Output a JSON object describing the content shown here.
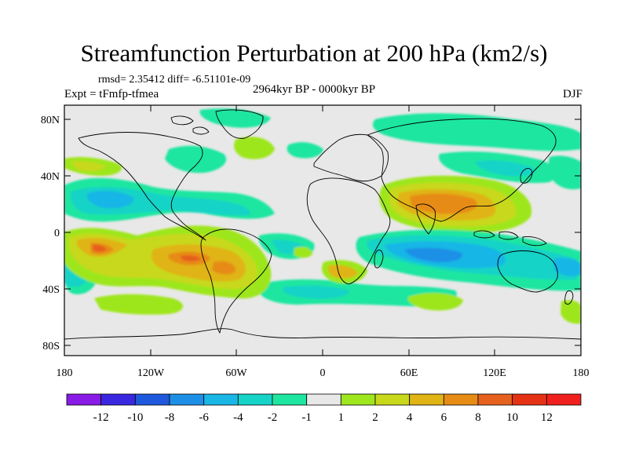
{
  "title": "Streamfunction Perturbation at 200 hPa (km2/s)",
  "stats": "rmsd= 2.35412 diff= -6.51101e-09",
  "experiment": "Expt = tFmfp-tfmea",
  "period": "2964kyr BP - 0000kyr BP",
  "season": "DJF",
  "lat_labels": [
    "80N",
    "40N",
    "0",
    "40S",
    "80S"
  ],
  "lon_labels": [
    "180",
    "120W",
    "60W",
    "0",
    "60E",
    "120E",
    "180"
  ],
  "colorbar": {
    "labels": [
      "-12",
      "-10",
      "-8",
      "-6",
      "-4",
      "-2",
      "-1",
      "1",
      "2",
      "4",
      "6",
      "8",
      "10",
      "12"
    ],
    "colors": [
      "#8a1be6",
      "#3a27e0",
      "#1e58dc",
      "#1e8fe6",
      "#19b6e6",
      "#16d3c7",
      "#1ee6a0",
      "#e8e8e8",
      "#9ee61e",
      "#c8d81a",
      "#e0b414",
      "#e68c14",
      "#e6601e",
      "#e63214",
      "#f0201e"
    ]
  },
  "colors": {
    "background": "#e8e8e8",
    "coast": "#000000",
    "frame": "#000000"
  }
}
